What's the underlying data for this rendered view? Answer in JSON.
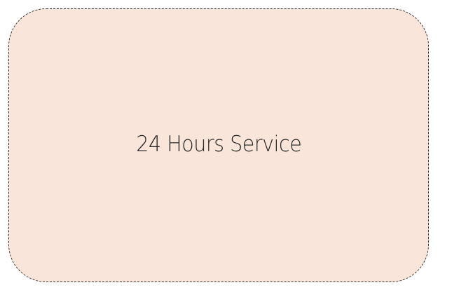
{
  "card": {
    "label": "24 Hours Service",
    "background_color": "#f9e5d9",
    "border_color": "#333333",
    "text_color": "#2a2a2a"
  }
}
